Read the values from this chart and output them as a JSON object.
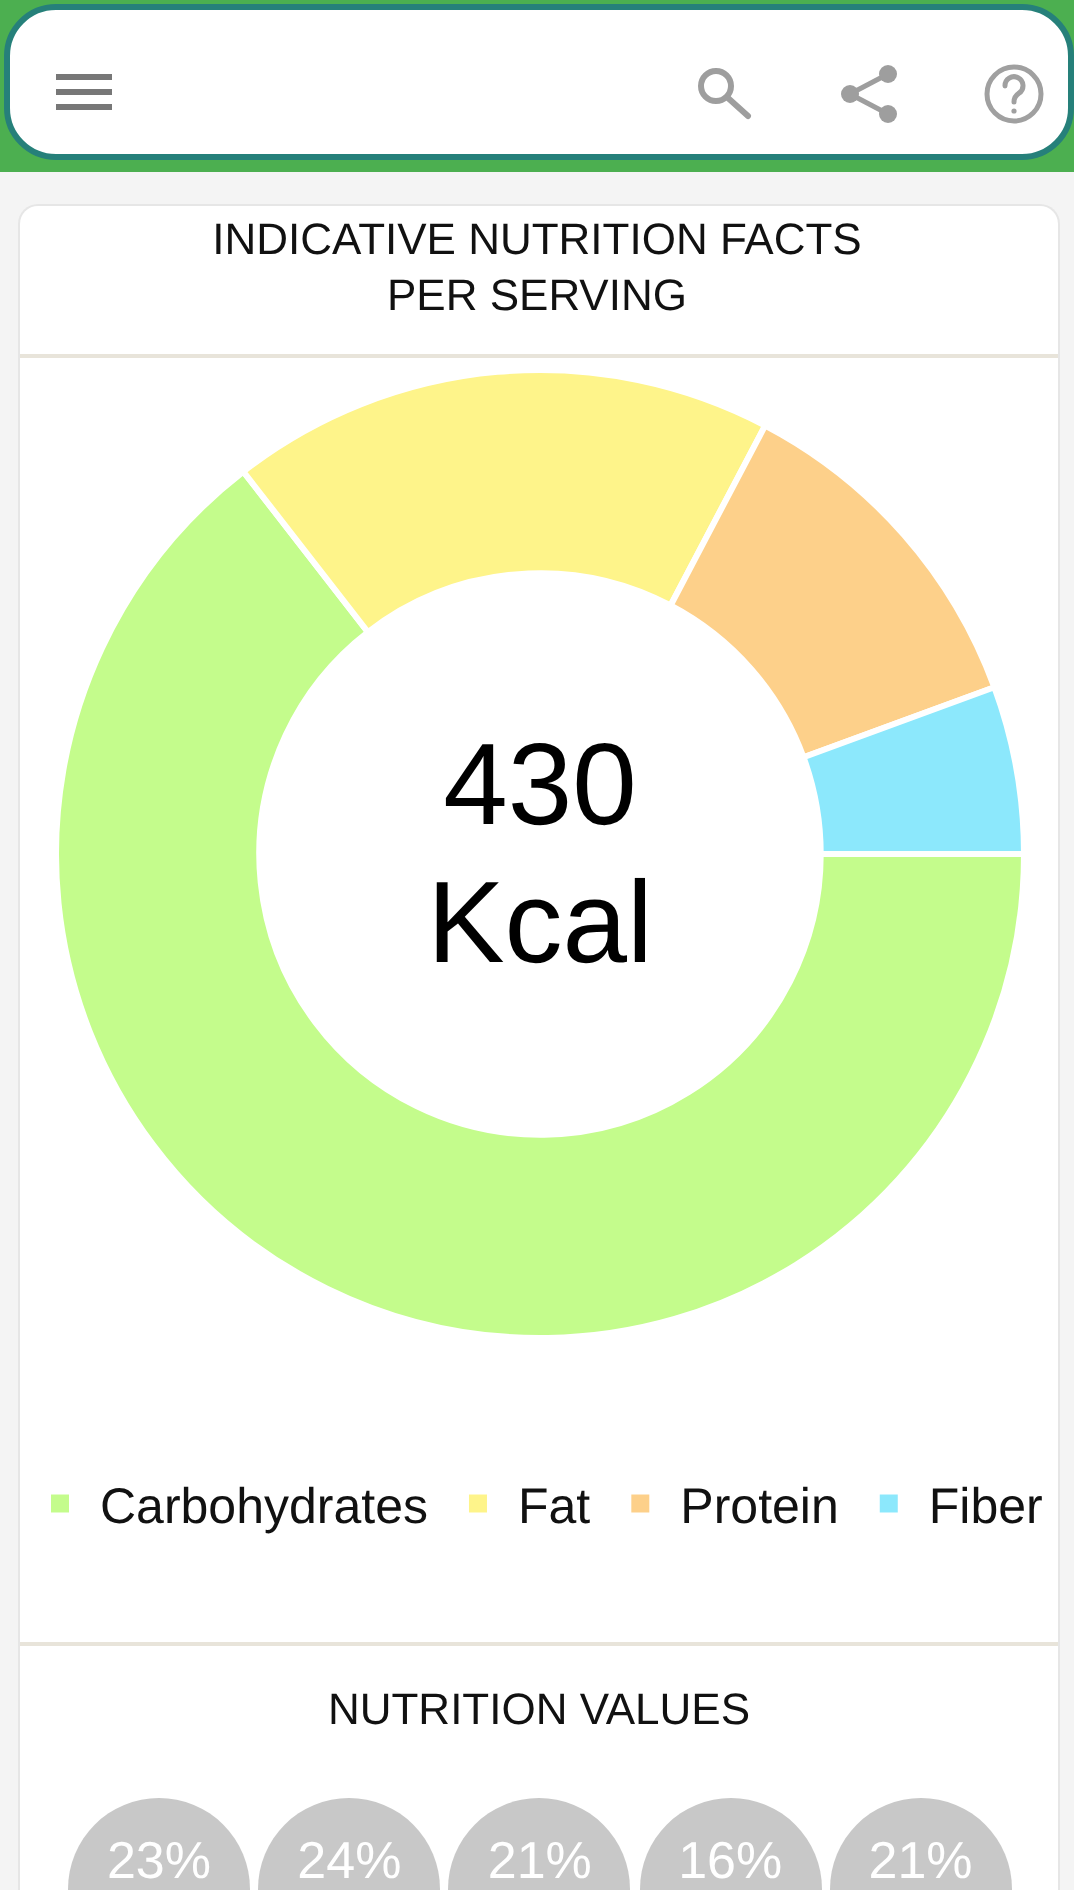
{
  "chart_data": [
    {
      "type": "donut",
      "title": "INDICATIVE NUTRITION FACTS PER SERVING",
      "categories": [
        "Carbohydrates",
        "Fat",
        "Protein",
        "Fiber"
      ],
      "values": [
        64.5,
        18.2,
        11.7,
        5.6
      ],
      "colors": [
        "#c4fc8c",
        "#fef48a",
        "#fdd08a",
        "#8ce8fc"
      ],
      "annotations": [
        "430 Kcal"
      ],
      "legend": "bottom"
    },
    {
      "type": "other",
      "title": "NUTRITION VALUES",
      "annotations": [
        "23%",
        "24%",
        "21%",
        "16%",
        "21%"
      ]
    }
  ]
}
